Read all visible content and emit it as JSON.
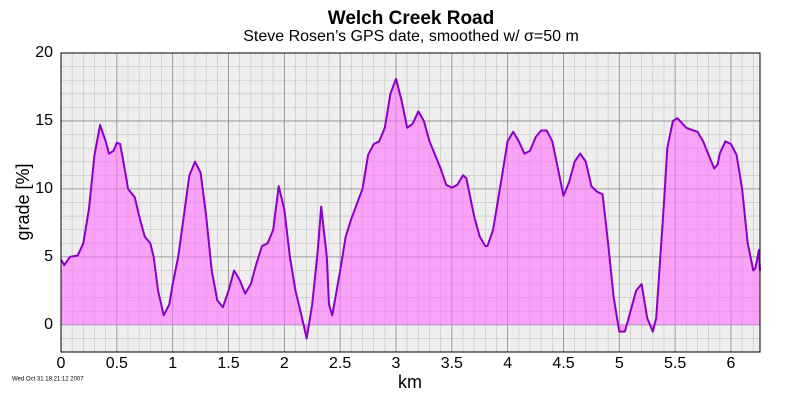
{
  "chart_data": {
    "type": "area",
    "title": "Welch Creek Road",
    "subtitle": "Steve Rosen’s GPS date, smoothed w/ σ=50 m",
    "x_label": "km",
    "y_label": "grade [%]",
    "timestamp": "Wed Oct 31 18:21:12 2007",
    "xlim": [
      0,
      6.26
    ],
    "ylim": [
      -2,
      20
    ],
    "xticks": [
      0,
      0.5,
      1,
      1.5,
      2,
      2.5,
      3,
      3.5,
      4,
      4.5,
      5,
      5.5,
      6
    ],
    "yticks": [
      0,
      5,
      10,
      15,
      20
    ],
    "grid": true,
    "minor_grid": true,
    "line_color": "#8a00c8",
    "fill_color": "#ff70ff",
    "x": [
      0,
      0.03,
      0.08,
      0.15,
      0.2,
      0.25,
      0.3,
      0.35,
      0.4,
      0.43,
      0.47,
      0.5,
      0.53,
      0.58,
      0.6,
      0.66,
      0.7,
      0.75,
      0.8,
      0.83,
      0.87,
      0.92,
      0.97,
      1.0,
      1.05,
      1.1,
      1.15,
      1.2,
      1.25,
      1.3,
      1.35,
      1.4,
      1.45,
      1.5,
      1.55,
      1.6,
      1.65,
      1.7,
      1.75,
      1.8,
      1.85,
      1.9,
      1.95,
      2.0,
      2.05,
      2.1,
      2.15,
      2.2,
      2.25,
      2.3,
      2.33,
      2.38,
      2.4,
      2.43,
      2.5,
      2.55,
      2.6,
      2.7,
      2.75,
      2.8,
      2.85,
      2.9,
      2.95,
      3.0,
      3.05,
      3.1,
      3.15,
      3.2,
      3.25,
      3.3,
      3.35,
      3.4,
      3.45,
      3.5,
      3.55,
      3.6,
      3.63,
      3.7,
      3.75,
      3.8,
      3.82,
      3.87,
      3.95,
      4.0,
      4.05,
      4.1,
      4.15,
      4.2,
      4.25,
      4.3,
      4.35,
      4.4,
      4.45,
      4.5,
      4.55,
      4.6,
      4.65,
      4.7,
      4.75,
      4.8,
      4.85,
      4.9,
      4.95,
      5.0,
      5.05,
      5.1,
      5.15,
      5.2,
      5.25,
      5.3,
      5.33,
      5.4,
      5.43,
      5.48,
      5.52,
      5.6,
      5.7,
      5.75,
      5.8,
      5.85,
      5.88,
      5.9,
      5.95,
      6.0,
      6.05,
      6.1,
      6.15,
      6.2,
      6.22,
      6.25,
      6.26
    ],
    "values": [
      4.8,
      4.4,
      5.0,
      5.1,
      6.0,
      8.5,
      12.5,
      14.7,
      13.5,
      12.6,
      12.8,
      13.4,
      13.3,
      11.0,
      10.0,
      9.4,
      8.0,
      6.5,
      6.0,
      5.0,
      2.5,
      0.7,
      1.5,
      3.0,
      5.0,
      8.0,
      11.0,
      12.0,
      11.2,
      8.0,
      4.0,
      1.8,
      1.3,
      2.5,
      4.0,
      3.3,
      2.3,
      3.0,
      4.5,
      5.8,
      6.0,
      7.0,
      10.2,
      8.5,
      5.0,
      2.5,
      0.8,
      -1.0,
      1.5,
      5.5,
      8.7,
      5.0,
      1.5,
      0.7,
      4.0,
      6.5,
      7.8,
      10.0,
      12.5,
      13.3,
      13.5,
      14.5,
      17.0,
      18.1,
      16.5,
      14.5,
      14.8,
      15.7,
      15.0,
      13.5,
      12.5,
      11.5,
      10.3,
      10.1,
      10.3,
      11.0,
      10.8,
      8.0,
      6.5,
      5.8,
      5.8,
      7.0,
      11.0,
      13.5,
      14.2,
      13.5,
      12.6,
      12.8,
      13.8,
      14.3,
      14.3,
      13.5,
      11.5,
      9.5,
      10.5,
      12.0,
      12.6,
      12.0,
      10.2,
      9.8,
      9.6,
      6.0,
      2.0,
      -0.5,
      -0.5,
      1.0,
      2.5,
      3.0,
      0.5,
      -0.5,
      0.5,
      9.0,
      13.0,
      15.0,
      15.2,
      14.5,
      14.2,
      13.5,
      12.5,
      11.5,
      11.8,
      12.6,
      13.5,
      13.3,
      12.5,
      10.0,
      6.0,
      4.0,
      4.2,
      5.5,
      4.0
    ]
  }
}
